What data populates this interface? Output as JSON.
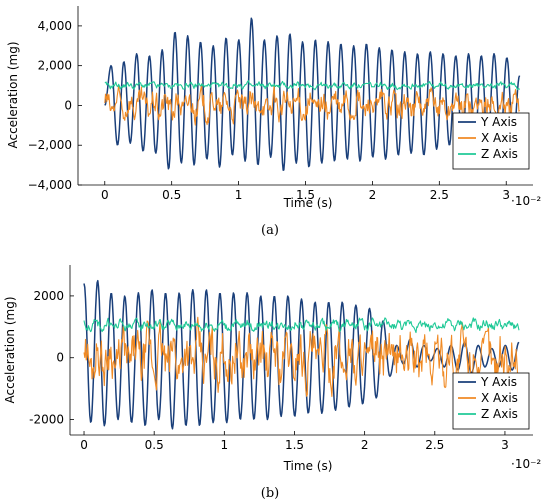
{
  "chart_data": [
    {
      "id": "a",
      "type": "line",
      "subfigure_label": "(a)",
      "xlabel": "Time (s)",
      "ylabel": "Acceleration (mg)",
      "x_multiplier": "·10⁻²",
      "xlim": [
        -0.2,
        3.2
      ],
      "ylim": [
        -4000,
        5000
      ],
      "xticks": [
        0,
        0.5,
        1,
        1.5,
        2,
        2.5,
        3
      ],
      "xtick_labels": [
        "0",
        "0.5",
        "1",
        "1.5",
        "2",
        "2.5",
        "3"
      ],
      "yticks": [
        -4000,
        -2000,
        0,
        2000,
        4000
      ],
      "ytick_labels": [
        "−4,000",
        "−2,000",
        "0",
        "2,000",
        "4,000"
      ],
      "legend_position": "lower-right",
      "series": [
        {
          "name": "Y Axis",
          "color": "#1a3f7a",
          "kind": "y",
          "t_end": 3.1,
          "freq": 11,
          "offset": 0,
          "peaks": [
            0,
            2000,
            -2000,
            2200,
            -1900,
            2600,
            -2300,
            2500,
            -2400,
            2800,
            -3200,
            3700,
            -2900,
            3500,
            -3000,
            3200,
            -2700,
            3000,
            -3100,
            3400,
            -2500,
            3300,
            -2800,
            4400,
            -3000,
            3300,
            -2600,
            3500,
            -3300,
            3600,
            -2900,
            3200,
            -3100,
            3300,
            -2900,
            3200,
            -2800,
            3100,
            -2700,
            3000,
            -2800,
            3100,
            -2600,
            2900,
            -2700,
            2800,
            -2500,
            2700,
            -2400,
            2600,
            -2500,
            2700,
            -2200,
            2600,
            -2000,
            2500,
            -2100,
            2600,
            -1900,
            2500,
            -2000,
            2600,
            -1800,
            2400,
            -1700,
            1500
          ]
        },
        {
          "name": "X Axis",
          "color": "#f08a24",
          "kind": "x",
          "t_end": 3.1,
          "base": 0,
          "amp": 500
        },
        {
          "name": "Z Axis",
          "color": "#20c997",
          "kind": "z",
          "t_end": 3.1,
          "base": 1000,
          "amp": 110
        }
      ]
    },
    {
      "id": "b",
      "type": "line",
      "subfigure_label": "(b)",
      "xlabel": "Time (s)",
      "ylabel": "Acceleration (mg)",
      "x_multiplier": "·10⁻²",
      "xlim": [
        -0.1,
        3.2
      ],
      "ylim": [
        -2500,
        3000
      ],
      "xticks": [
        0,
        0.5,
        1,
        1.5,
        2,
        2.5,
        3
      ],
      "xtick_labels": [
        "0",
        "0.5",
        "1",
        "1.5",
        "2",
        "2.5",
        "3"
      ],
      "yticks": [
        -2000,
        0,
        2000
      ],
      "ytick_labels": [
        "-2000",
        "0",
        "2000"
      ],
      "legend_position": "lower-right",
      "series": [
        {
          "name": "Y Axis",
          "color": "#1a3f7a",
          "kind": "y",
          "t_end": 3.1,
          "freq": 10.5,
          "offset": 0,
          "peaks": [
            2400,
            -2100,
            2500,
            -2200,
            2100,
            -2000,
            2000,
            -2100,
            2100,
            -2200,
            2200,
            -2000,
            2100,
            -2300,
            2100,
            -2200,
            2200,
            -2200,
            2200,
            -2100,
            2100,
            -2100,
            2100,
            -2000,
            2100,
            -2000,
            2000,
            -2000,
            2000,
            -1900,
            2000,
            -1900,
            1900,
            -1800,
            1800,
            -1800,
            1800,
            -1700,
            1800,
            -1600,
            1700,
            -1500,
            1600,
            -1300,
            1200,
            -600,
            400,
            -200,
            600,
            -300,
            400,
            -100,
            300,
            -300,
            400,
            -400,
            500,
            -500,
            400,
            -300,
            300,
            -300,
            400,
            -400,
            500
          ]
        },
        {
          "name": "X Axis",
          "color": "#f08a24",
          "kind": "x",
          "t_end": 3.1,
          "base": 0,
          "amp": 600
        },
        {
          "name": "Z Axis",
          "color": "#20c997",
          "kind": "z",
          "t_end": 3.1,
          "base": 1050,
          "amp": 120
        }
      ]
    }
  ]
}
